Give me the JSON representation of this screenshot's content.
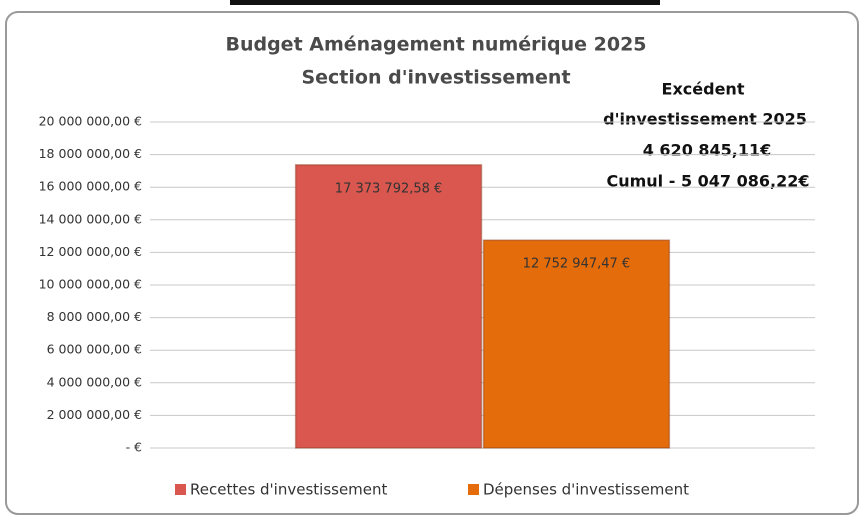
{
  "chart_data": {
    "type": "bar",
    "title": [
      "Budget Aménagement numérique 2025",
      "Section d'investissement"
    ],
    "annotations": [
      "Excédent",
      "d'investissement 2025",
      "4 620 845,11€",
      "Cumul - 5 047 086,22€"
    ],
    "categories": [
      null
    ],
    "series": [
      {
        "name": "Recettes d'investissement",
        "color": "#d9574f",
        "values": [
          17373792.58
        ],
        "value_labels": [
          "17 373 792,58 €"
        ]
      },
      {
        "name": "Dépenses d'investissement",
        "color": "#e46c0a",
        "values": [
          12752947.47
        ],
        "value_labels": [
          "12 752 947,47 €"
        ]
      }
    ],
    "ylim": [
      0,
      20000000
    ],
    "yticks": [
      {
        "value": 0,
        "label": "- €"
      },
      {
        "value": 2000000,
        "label": "2 000 000,00 €"
      },
      {
        "value": 4000000,
        "label": "4 000 000,00 €"
      },
      {
        "value": 6000000,
        "label": "6 000 000,00 €"
      },
      {
        "value": 8000000,
        "label": "8 000 000,00 €"
      },
      {
        "value": 10000000,
        "label": "10 000 000,00 €"
      },
      {
        "value": 12000000,
        "label": "12 000 000,00 €"
      },
      {
        "value": 14000000,
        "label": "14 000 000,00 €"
      },
      {
        "value": 16000000,
        "label": "16 000 000,00 €"
      },
      {
        "value": 18000000,
        "label": "18 000 000,00 €"
      },
      {
        "value": 20000000,
        "label": "20 000 000,00 €"
      }
    ],
    "grid": true,
    "legend": "bottom"
  }
}
